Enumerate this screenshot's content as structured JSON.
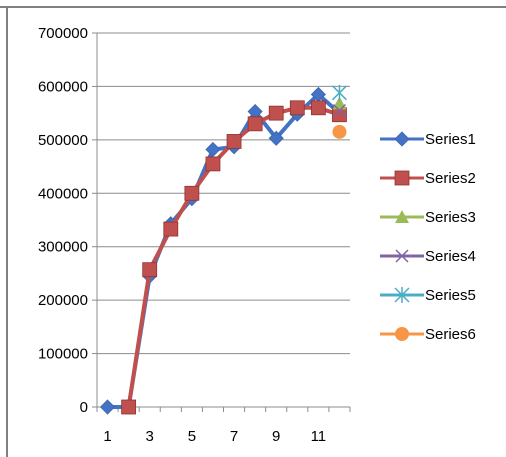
{
  "chart_data": {
    "type": "line",
    "title": "",
    "xlabel": "",
    "ylabel": "",
    "x": [
      1,
      2,
      3,
      4,
      5,
      6,
      7,
      8,
      9,
      10,
      11,
      12
    ],
    "x_tick_labels": [
      "1",
      "3",
      "5",
      "7",
      "9",
      "11"
    ],
    "ylim": [
      0,
      700000
    ],
    "y_ticks": [
      0,
      100000,
      200000,
      300000,
      400000,
      500000,
      600000,
      700000
    ],
    "y_tick_labels": [
      "0",
      "100000",
      "200000",
      "300000",
      "400000",
      "500000",
      "600000",
      "700000"
    ],
    "grid": "horizontal",
    "legend_position": "right",
    "series": [
      {
        "name": "Series1",
        "color": "#4472C4",
        "marker": "diamond",
        "values": [
          0,
          0,
          245000,
          343000,
          390000,
          482000,
          487000,
          553000,
          503000,
          548000,
          585000,
          550000
        ]
      },
      {
        "name": "Series2",
        "color": "#C0504D",
        "marker": "square",
        "values": [
          null,
          0,
          257000,
          333000,
          400000,
          455000,
          497000,
          530000,
          550000,
          560000,
          560000,
          547000
        ]
      },
      {
        "name": "Series3",
        "color": "#9BBB59",
        "marker": "triangle",
        "values": [
          null,
          null,
          null,
          null,
          null,
          null,
          null,
          null,
          null,
          null,
          null,
          568000
        ]
      },
      {
        "name": "Series4",
        "color": "#8064A2",
        "marker": "x",
        "values": [
          null,
          null,
          null,
          null,
          null,
          null,
          null,
          null,
          null,
          null,
          null,
          555000
        ]
      },
      {
        "name": "Series5",
        "color": "#4BACC6",
        "marker": "star",
        "values": [
          null,
          null,
          null,
          null,
          null,
          null,
          null,
          null,
          null,
          null,
          null,
          588000
        ]
      },
      {
        "name": "Series6",
        "color": "#F79646",
        "marker": "circle",
        "values": [
          null,
          null,
          null,
          null,
          null,
          null,
          null,
          null,
          null,
          null,
          null,
          515000
        ]
      }
    ]
  }
}
